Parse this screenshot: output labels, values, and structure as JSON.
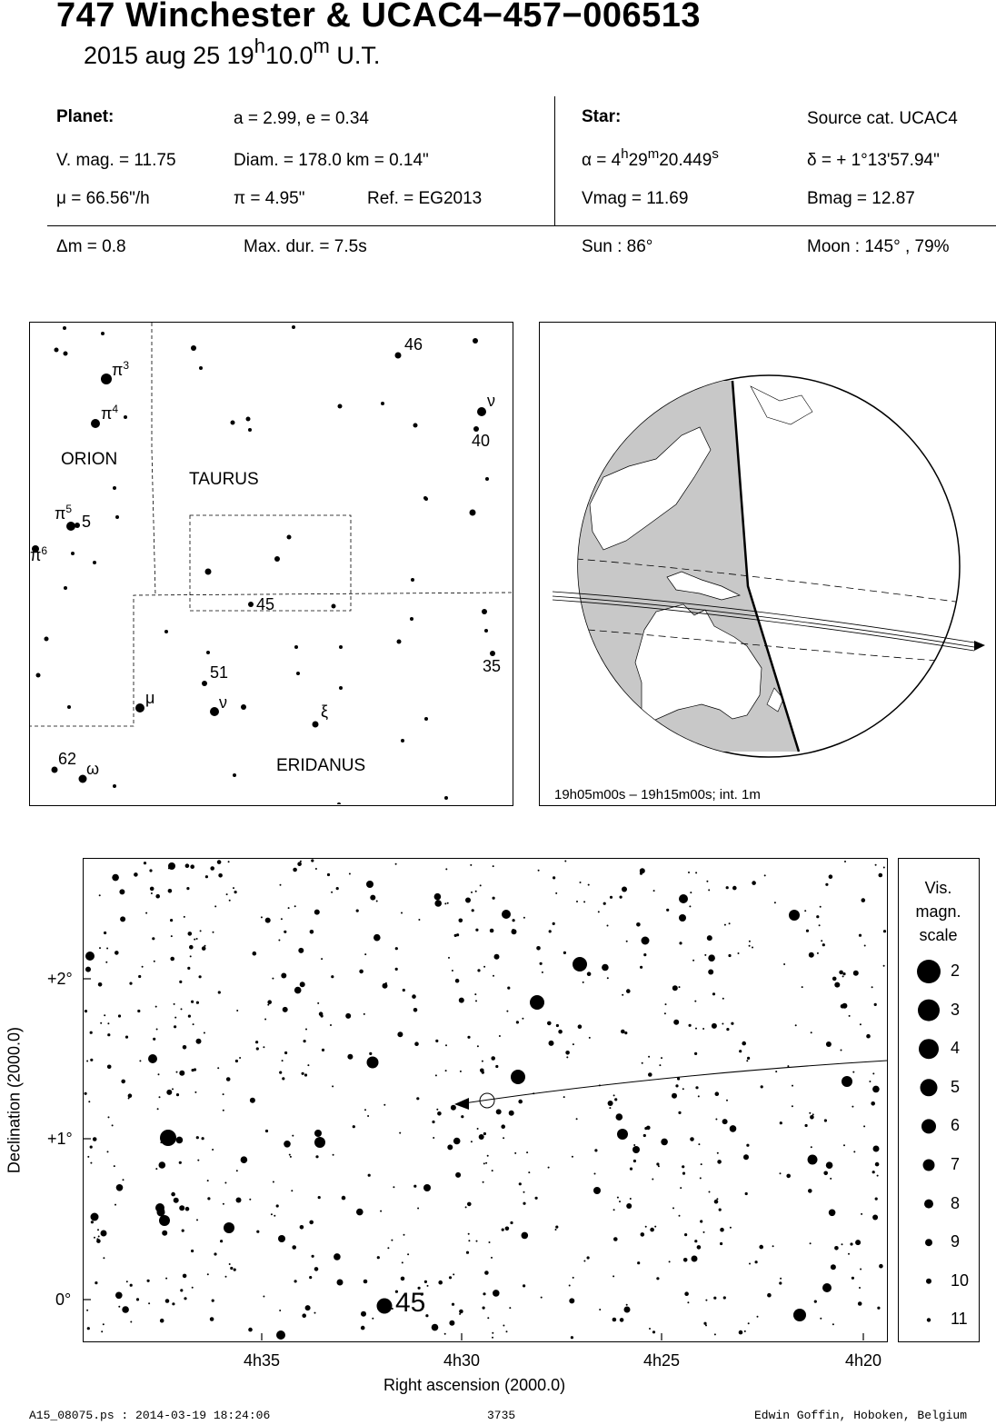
{
  "header": {
    "title": "747 Winchester  &  UCAC4−457−006513",
    "date": "2015 aug 25  19",
    "hour_sup": "h",
    "minutes": "10.0",
    "min_sup": "m",
    "ut": " U.T."
  },
  "planet": {
    "label": "Planet:",
    "orbit": "a = 2.99, e = 0.34",
    "vmag": "V. mag. = 11.75",
    "diam": "Diam. = 178.0 km = 0.14\"",
    "mu": "μ =  66.56\"/h",
    "pi": "π =  4.95\"",
    "ref": "Ref. = EG2013"
  },
  "star": {
    "label": "Star:",
    "source": "Source cat.  UCAC4",
    "ra_prefix": "α =  4",
    "ra_h": "h",
    "ra_min": "29",
    "ra_m": "m",
    "ra_sec": "20.449",
    "ra_s": "s",
    "dec": "δ = + 1°13'57.94\"",
    "vmag": "Vmag = 11.69",
    "bmag": "Bmag = 12.87"
  },
  "event": {
    "dm": "Δm = 0.8",
    "maxdur": "Max. dur. = 7.5s",
    "sun": "Sun :  86°",
    "moon": "Moon : 145° , 79%"
  },
  "finder": {
    "constellations": [
      "ORION",
      "TAURUS",
      "ERIDANUS"
    ],
    "labels": [
      "π",
      "3",
      "π",
      "4",
      "π",
      "5",
      "5",
      "π",
      "6",
      "46",
      "ν",
      "40",
      "45",
      "51",
      "ν",
      "μ",
      "ξ",
      "35",
      "62",
      "ω"
    ]
  },
  "globe": {
    "caption": "19h05m00s – 19h15m00s; int.  1m"
  },
  "starmap": {
    "ylabel": "Declination (2000.0)",
    "xlabel": "Right ascension (2000.0)",
    "yticks": [
      "+2°",
      "+1°",
      "0°"
    ],
    "xticks": [
      "4h35",
      "4h30",
      "4h25",
      "4h20"
    ],
    "star_label": "45"
  },
  "legend": {
    "title1": "Vis.",
    "title2": "magn.",
    "title3": "scale",
    "mags": [
      "2",
      "3",
      "4",
      "5",
      "6",
      "7",
      "8",
      "9",
      "10",
      "11"
    ]
  },
  "footer": {
    "file": "A15_08075.ps : 2014-03-19 18:24:06",
    "number": "3735",
    "author": "Edwin Goffin, Hoboken, Belgium"
  }
}
